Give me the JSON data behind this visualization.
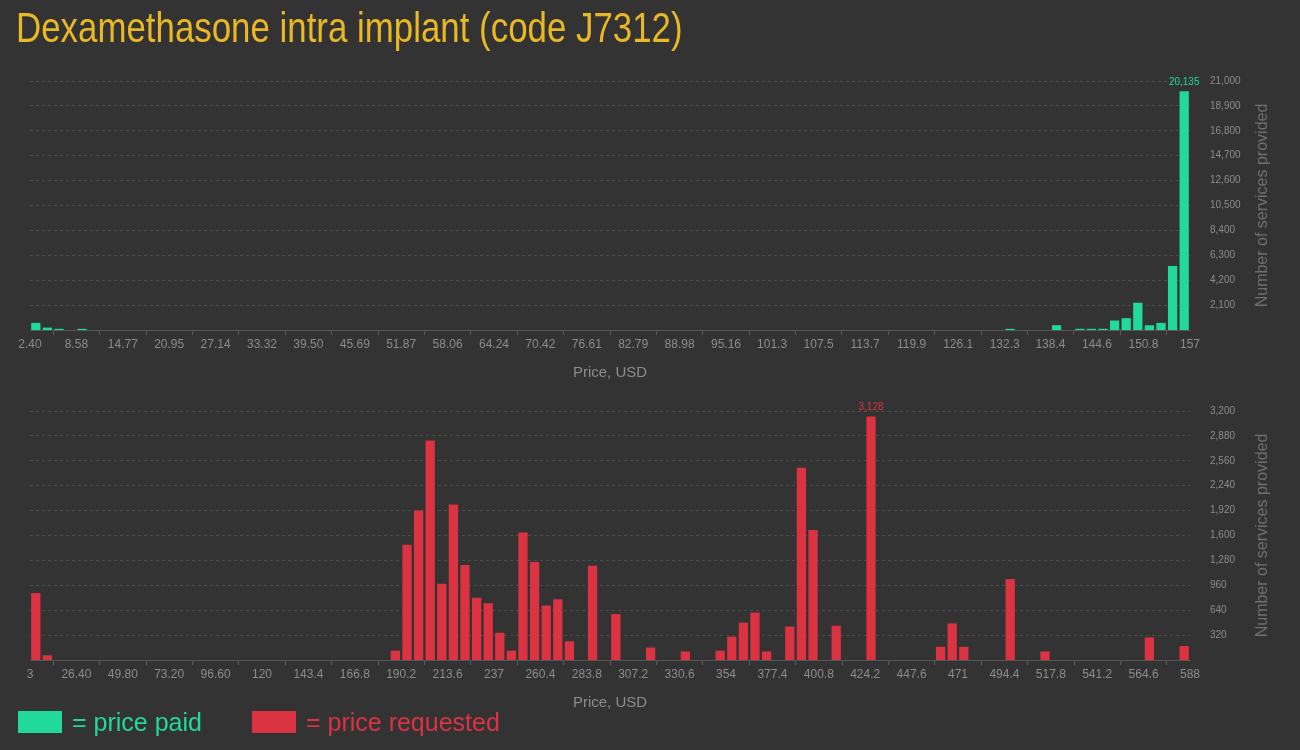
{
  "chart_data": [
    {
      "type": "histogram",
      "title": "Dexamethasone intra implant (code J7312)",
      "xlabel": "Price, USD",
      "ylabel": "Number of services provided",
      "bins": [
        2.4,
        3.946,
        5.492,
        7.038,
        8.584,
        10.13,
        11.676,
        13.222,
        14.768,
        16.314,
        17.86,
        19.406,
        20.952,
        22.498,
        24.044,
        25.59,
        27.136,
        28.682,
        30.228,
        31.774,
        33.32,
        34.866,
        36.412,
        37.958,
        39.504,
        41.05,
        42.596,
        44.142,
        45.688,
        47.234,
        48.78,
        50.326,
        51.872,
        53.418,
        54.964,
        56.51,
        58.056,
        59.602,
        61.148,
        62.694,
        64.24,
        65.786,
        67.332,
        68.878,
        70.424,
        71.97,
        73.516,
        75.062,
        76.608,
        78.154,
        79.7,
        81.246,
        82.792,
        84.338,
        85.884,
        87.43,
        88.976,
        90.522,
        92.068,
        93.614,
        95.16,
        96.706,
        98.252,
        99.798,
        101.344,
        102.89,
        104.436,
        105.982,
        107.528,
        109.074,
        110.62,
        112.166,
        113.712,
        115.258,
        116.804,
        118.35,
        119.896,
        121.442,
        122.988,
        124.534,
        126.08,
        127.626,
        129.172,
        130.718,
        132.264,
        133.81,
        135.356,
        136.902,
        138.448,
        139.994,
        141.54,
        143.086,
        144.632,
        146.178,
        147.724,
        149.27,
        150.816,
        152.362,
        153.908,
        155.454,
        157
      ],
      "series": [
        {
          "name": "= price paid",
          "color": "#21d99b",
          "values": [
            600,
            200,
            100,
            0,
            100,
            0,
            0,
            0,
            0,
            0,
            0,
            0,
            0,
            0,
            0,
            0,
            0,
            0,
            0,
            0,
            0,
            0,
            0,
            0,
            0,
            0,
            0,
            0,
            0,
            0,
            0,
            0,
            0,
            0,
            0,
            0,
            0,
            0,
            0,
            0,
            0,
            0,
            0,
            0,
            0,
            0,
            0,
            0,
            0,
            0,
            0,
            0,
            0,
            0,
            0,
            0,
            0,
            0,
            0,
            0,
            0,
            0,
            0,
            0,
            0,
            0,
            0,
            0,
            0,
            0,
            0,
            0,
            0,
            0,
            0,
            0,
            0,
            0,
            0,
            0,
            0,
            0,
            0,
            0,
            100,
            0,
            0,
            0,
            400,
            0,
            100,
            100,
            100,
            800,
            1000,
            2300,
            400,
            600,
            5400,
            20135
          ],
          "value_labels": [
            null,
            null,
            null,
            null,
            null,
            null,
            null,
            null,
            null,
            null,
            null,
            null,
            null,
            null,
            null,
            null,
            null,
            null,
            null,
            null,
            null,
            null,
            null,
            null,
            null,
            null,
            null,
            null,
            null,
            null,
            null,
            null,
            null,
            null,
            null,
            null,
            null,
            null,
            null,
            null,
            null,
            null,
            null,
            null,
            null,
            null,
            null,
            null,
            null,
            null,
            null,
            null,
            null,
            null,
            null,
            null,
            null,
            null,
            null,
            null,
            null,
            null,
            null,
            null,
            null,
            null,
            null,
            null,
            null,
            null,
            null,
            null,
            null,
            null,
            null,
            null,
            null,
            null,
            null,
            null,
            null,
            null,
            null,
            null,
            null,
            null,
            null,
            null,
            null,
            null,
            null,
            null,
            null,
            null,
            null,
            null,
            null,
            null,
            null,
            "20,135"
          ]
        }
      ],
      "xlim": [
        2.4,
        157
      ],
      "xticks": [
        {
          "value": 2.4,
          "label": "2.40"
        },
        8.58,
        14.77,
        20.95,
        27.14,
        33.32,
        {
          "value": 39.5,
          "label": "39.50"
        },
        45.69,
        51.87,
        58.06,
        64.24,
        70.42,
        76.61,
        82.79,
        88.98,
        95.16,
        101.3,
        107.5,
        113.7,
        119.9,
        126.1,
        132.3,
        138.4,
        144.6,
        150.8,
        157
      ],
      "ylim": [
        0,
        21000
      ],
      "yticks": [
        {
          "value": 2100,
          "label": "2,100"
        },
        {
          "value": 4200,
          "label": "4,200"
        },
        {
          "value": 6300,
          "label": "6,300"
        },
        {
          "value": 8400,
          "label": "8,400"
        },
        {
          "value": 10500,
          "label": "10,500"
        },
        {
          "value": 12600,
          "label": "12,600"
        },
        {
          "value": 14700,
          "label": "14,700"
        },
        {
          "value": 16800,
          "label": "16,800"
        },
        {
          "value": 18900,
          "label": "18,900"
        },
        {
          "value": 21000,
          "label": "21,000"
        }
      ],
      "grid": "y",
      "legend": "bottom left"
    },
    {
      "type": "histogram",
      "xlabel": "Price, USD",
      "ylabel": "Number of services provided",
      "bins": [
        3,
        8.85,
        14.7,
        20.55,
        26.4,
        32.25,
        38.1,
        43.95,
        49.8,
        55.65,
        61.5,
        67.35,
        73.2,
        79.05,
        84.9,
        90.75,
        96.6,
        102.45,
        108.3,
        114.15,
        120,
        125.85,
        131.7,
        137.55,
        143.4,
        149.25,
        155.1,
        160.95,
        166.8,
        172.65,
        178.5,
        184.35,
        190.2,
        196.05,
        201.9,
        207.75,
        213.6,
        219.45,
        225.3,
        231.15,
        237,
        242.85,
        248.7,
        254.55,
        260.4,
        266.25,
        272.1,
        277.95,
        283.8,
        289.65,
        295.5,
        301.35,
        307.2,
        313.05,
        318.9,
        324.75,
        330.6,
        336.45,
        342.3,
        348.15,
        354,
        359.85,
        365.7,
        371.55,
        377.4,
        383.25,
        389.1,
        394.95,
        400.8,
        406.65,
        412.5,
        418.35,
        424.2,
        430.05,
        435.9,
        441.75,
        447.6,
        453.45,
        459.3,
        465.15,
        471,
        476.85,
        482.7,
        488.55,
        494.4,
        500.25,
        506.1,
        511.95,
        517.8,
        523.65,
        529.5,
        535.35,
        541.2,
        547.05,
        552.9,
        558.75,
        564.6,
        570.45,
        576.3,
        582.15,
        588
      ],
      "series": [
        {
          "name": "= price requested",
          "color": "#dc3342",
          "values": [
            860,
            60,
            0,
            0,
            0,
            0,
            0,
            0,
            0,
            0,
            0,
            0,
            0,
            0,
            0,
            0,
            0,
            0,
            0,
            0,
            0,
            0,
            0,
            0,
            0,
            0,
            0,
            0,
            0,
            0,
            0,
            120,
            1480,
            1920,
            2820,
            980,
            2000,
            1220,
            800,
            730,
            350,
            120,
            1640,
            1260,
            700,
            780,
            240,
            0,
            1210,
            0,
            590,
            0,
            0,
            160,
            0,
            0,
            110,
            0,
            0,
            120,
            300,
            480,
            610,
            110,
            0,
            430,
            2470,
            1670,
            0,
            440,
            0,
            0,
            3128,
            0,
            0,
            0,
            0,
            0,
            170,
            470,
            170,
            0,
            0,
            0,
            1040,
            0,
            0,
            110,
            0,
            0,
            0,
            0,
            0,
            0,
            0,
            0,
            290,
            0,
            0,
            180
          ],
          "value_labels": [
            null,
            null,
            null,
            null,
            null,
            null,
            null,
            null,
            null,
            null,
            null,
            null,
            null,
            null,
            null,
            null,
            null,
            null,
            null,
            null,
            null,
            null,
            null,
            null,
            null,
            null,
            null,
            null,
            null,
            null,
            null,
            null,
            null,
            null,
            null,
            null,
            null,
            null,
            null,
            null,
            null,
            null,
            null,
            null,
            null,
            null,
            null,
            null,
            null,
            null,
            null,
            null,
            null,
            null,
            null,
            null,
            null,
            null,
            null,
            null,
            null,
            null,
            null,
            null,
            null,
            null,
            null,
            null,
            null,
            null,
            null,
            null,
            "3,128",
            null,
            null,
            null,
            null,
            null,
            null,
            null,
            null,
            null,
            null,
            null,
            null,
            null,
            null,
            null,
            null,
            null,
            null,
            null,
            null,
            null,
            null,
            null,
            null,
            null,
            null,
            null
          ]
        }
      ],
      "xlim": [
        3,
        588
      ],
      "xticks": [
        3,
        {
          "value": 26.4,
          "label": "26.40"
        },
        {
          "value": 49.8,
          "label": "49.80"
        },
        {
          "value": 73.2,
          "label": "73.20"
        },
        {
          "value": 96.6,
          "label": "96.60"
        },
        120,
        143.4,
        166.8,
        190.2,
        213.6,
        237,
        260.4,
        283.8,
        307.2,
        330.6,
        354,
        377.4,
        400.8,
        424.2,
        447.6,
        471,
        494.4,
        517.8,
        541.2,
        564.6,
        588
      ],
      "ylim": [
        0,
        3200
      ],
      "yticks": [
        320,
        640,
        960,
        {
          "value": 1280,
          "label": "1,280"
        },
        {
          "value": 1600,
          "label": "1,600"
        },
        {
          "value": 1920,
          "label": "1,920"
        },
        {
          "value": 2240,
          "label": "2,240"
        },
        {
          "value": 2560,
          "label": "2,560"
        },
        {
          "value": 2880,
          "label": "2,880"
        },
        {
          "value": 3200,
          "label": "3,200"
        }
      ],
      "grid": "y",
      "legend": "bottom left"
    }
  ]
}
